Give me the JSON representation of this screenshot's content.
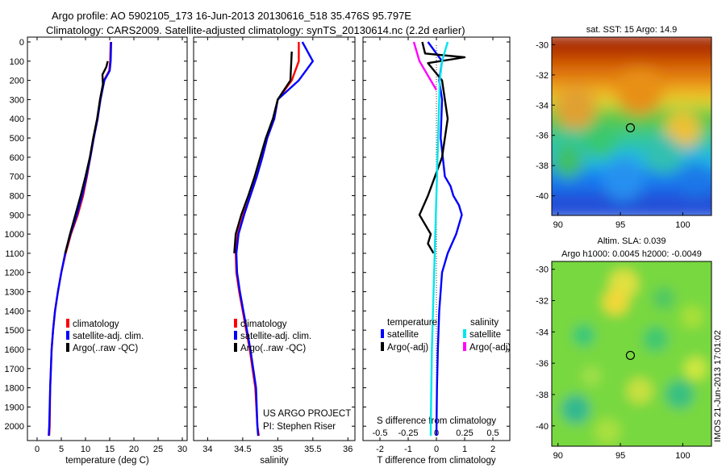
{
  "header": {
    "line1": "Argo profile: AO 5902105_173 16-Jun-2013 20130616_518 35.476S 95.797E",
    "line2": "Climatology: CARS2009. Satellite-adjusted climatology: synTS_20130614.nc (2.2d earlier)"
  },
  "side_stamp": "IMOS 21-Jun-2013 17:01:02",
  "colors": {
    "climatology": "#ff0000",
    "satellite": "#0000ff",
    "argo": "#000000",
    "salinity_satellite": "#00e5ee",
    "salinity_argo": "#ff00ff",
    "sst_high": "#b03000",
    "sst_low": "#0040ff",
    "sla_base": "#7ddc3a"
  },
  "chart_data": [
    {
      "type": "line",
      "xlabel": "temperature (deg C)",
      "ylabel": "",
      "xlim": [
        -2,
        31
      ],
      "ylim": [
        2100,
        0
      ],
      "xticks": [
        0,
        5,
        10,
        15,
        20,
        25,
        30
      ],
      "yticks": [
        0,
        100,
        200,
        300,
        400,
        500,
        600,
        700,
        800,
        900,
        1000,
        1100,
        1200,
        1300,
        1400,
        1500,
        1600,
        1700,
        1800,
        1900,
        2000
      ],
      "grid": false,
      "legend_position": "lower-right",
      "series": [
        {
          "name": "climatology",
          "color": "#ff0000",
          "x": [
            15.2,
            15.1,
            14.9,
            13.8,
            13.0,
            12.5,
            11.7,
            11.0,
            10.3,
            9.5,
            8.4,
            7.0,
            5.9,
            5.0,
            4.3,
            3.7,
            3.3,
            3.0,
            2.7,
            2.6,
            2.5
          ],
          "y": [
            0,
            100,
            150,
            200,
            300,
            400,
            500,
            600,
            700,
            800,
            900,
            1000,
            1100,
            1200,
            1300,
            1400,
            1500,
            1600,
            1800,
            2000,
            2050
          ]
        },
        {
          "name": "satellite-adj. clim.",
          "color": "#0000ff",
          "x": [
            15.3,
            15.2,
            15.0,
            13.9,
            13.1,
            12.5,
            11.7,
            11.0,
            10.2,
            9.3,
            8.2,
            6.9,
            5.8,
            5.0,
            4.3,
            3.7,
            3.3,
            3.0,
            2.7,
            2.5,
            2.4
          ],
          "y": [
            0,
            100,
            150,
            200,
            300,
            400,
            500,
            600,
            700,
            800,
            900,
            1000,
            1100,
            1200,
            1300,
            1400,
            1500,
            1600,
            1800,
            2000,
            2050
          ]
        },
        {
          "name": "Argo(..raw -QC)",
          "color": "#000000",
          "x": [
            14.6,
            14.3,
            13.5,
            13.6,
            13.0,
            12.4,
            11.6,
            10.9,
            10.0,
            9.0,
            7.9,
            6.8,
            5.8
          ],
          "y": [
            100,
            130,
            170,
            220,
            300,
            400,
            500,
            600,
            700,
            800,
            900,
            1000,
            1100
          ]
        }
      ]
    },
    {
      "type": "line",
      "xlabel": "salinity",
      "ylabel": "",
      "xlim": [
        33.8,
        36.1
      ],
      "ylim": [
        2100,
        0
      ],
      "xticks": [
        34,
        34.5,
        35,
        35.5,
        36
      ],
      "grid": false,
      "legend_position": "lower-right",
      "series": [
        {
          "name": "climatology",
          "color": "#ff0000",
          "x": [
            35.3,
            35.3,
            35.2,
            35.0,
            34.95,
            34.85,
            34.78,
            34.7,
            34.61,
            34.51,
            34.43,
            34.4,
            34.41,
            34.45,
            34.5,
            34.55,
            34.6,
            34.64,
            34.68,
            34.71,
            34.73
          ],
          "y": [
            0,
            100,
            200,
            300,
            400,
            500,
            600,
            700,
            800,
            900,
            1000,
            1100,
            1200,
            1300,
            1400,
            1500,
            1600,
            1700,
            1800,
            2000,
            2050
          ]
        },
        {
          "name": "satellite-adj. clim.",
          "color": "#0000ff",
          "x": [
            35.35,
            35.5,
            35.3,
            35.0,
            34.95,
            34.85,
            34.78,
            34.7,
            34.61,
            34.52,
            34.44,
            34.41,
            34.42,
            34.46,
            34.51,
            34.56,
            34.61,
            34.65,
            34.69,
            34.71,
            34.72
          ],
          "y": [
            0,
            100,
            200,
            300,
            400,
            500,
            600,
            700,
            800,
            900,
            1000,
            1100,
            1200,
            1300,
            1400,
            1500,
            1600,
            1700,
            1800,
            2000,
            2050
          ]
        },
        {
          "name": "Argo(..raw -QC)",
          "color": "#000000",
          "x": [
            35.2,
            35.18,
            35.0,
            34.93,
            34.83,
            34.75,
            34.67,
            34.58,
            34.48,
            34.4,
            34.38
          ],
          "y": [
            50,
            200,
            300,
            400,
            500,
            600,
            700,
            800,
            900,
            1000,
            1100
          ]
        }
      ]
    },
    {
      "type": "line",
      "xlabel": "T difference from climatology",
      "x2label": "S difference from climatology",
      "xlim": [
        -2.6,
        2.6
      ],
      "x2lim": [
        -0.65,
        0.65
      ],
      "ylim": [
        2100,
        0
      ],
      "xticks": [
        -2,
        -1,
        0,
        1,
        2
      ],
      "x2ticks": [
        "-0.5",
        "-0.25",
        "0",
        "0.25",
        "0.5"
      ],
      "grid": false,
      "legend_position": "lower",
      "legend_headers": {
        "temperature": "temperature",
        "salinity": "salinity"
      },
      "series": [
        {
          "name": "satellite",
          "group": "temperature",
          "color": "#0000ff",
          "x": [
            -0.3,
            0.2,
            0.1,
            0.2,
            0.15,
            0.3,
            0.5,
            0.6,
            0.8,
            0.9,
            0.7,
            0.4,
            0.2,
            0.1,
            0.05,
            0.02,
            0.0
          ],
          "y": [
            0,
            100,
            200,
            300,
            500,
            700,
            750,
            800,
            850,
            900,
            1000,
            1100,
            1200,
            1400,
            1600,
            1800,
            2050
          ]
        },
        {
          "name": "Argo(-adj)",
          "group": "temperature",
          "color": "#000000",
          "x": [
            -0.5,
            -0.4,
            1.0,
            -0.3,
            0.2,
            0.4,
            0.2,
            -0.3,
            -0.6,
            -0.4,
            -0.2,
            -0.3,
            -0.1
          ],
          "y": [
            0,
            60,
            80,
            110,
            200,
            400,
            600,
            800,
            900,
            950,
            1000,
            1050,
            1100
          ]
        },
        {
          "name": "satellite",
          "group": "salinity",
          "color": "#00e5ee",
          "x": [
            0.1,
            0.05,
            0.03,
            0.02,
            0.0,
            -0.02,
            -0.04,
            -0.05,
            -0.05
          ],
          "y": [
            0,
            100,
            200,
            400,
            800,
            1200,
            1600,
            2000,
            2050
          ]
        },
        {
          "name": "Argo(-adj)",
          "group": "salinity",
          "color": "#ff00ff",
          "x": [
            -0.2,
            -0.15,
            0.0
          ],
          "y": [
            0,
            100,
            250
          ]
        }
      ]
    },
    {
      "type": "heatmap",
      "title": "sat. SST: 15 Argo: 14.9",
      "xlim": [
        89.5,
        102.3
      ],
      "ylim": [
        -41.3,
        -29.5
      ],
      "xticks": [
        90,
        95,
        100
      ],
      "yticks": [
        -30,
        -32,
        -34,
        -36,
        -38,
        -40
      ],
      "marker": {
        "lon": 95.8,
        "lat": -35.5
      }
    },
    {
      "type": "heatmap",
      "title": "Altim. SLA: 0.039",
      "subtitle": "Argo h1000: 0.0045 h2000: -0.0049",
      "xlim": [
        89.5,
        102.3
      ],
      "ylim": [
        -41.3,
        -29.5
      ],
      "xticks": [
        90,
        95,
        100
      ],
      "yticks": [
        -30,
        -32,
        -34,
        -36,
        -38,
        -40
      ],
      "marker": {
        "lon": 95.8,
        "lat": -35.5
      }
    }
  ],
  "annotations": {
    "project": "US ARGO PROJECT",
    "pi": "PI: Stephen Riser"
  }
}
